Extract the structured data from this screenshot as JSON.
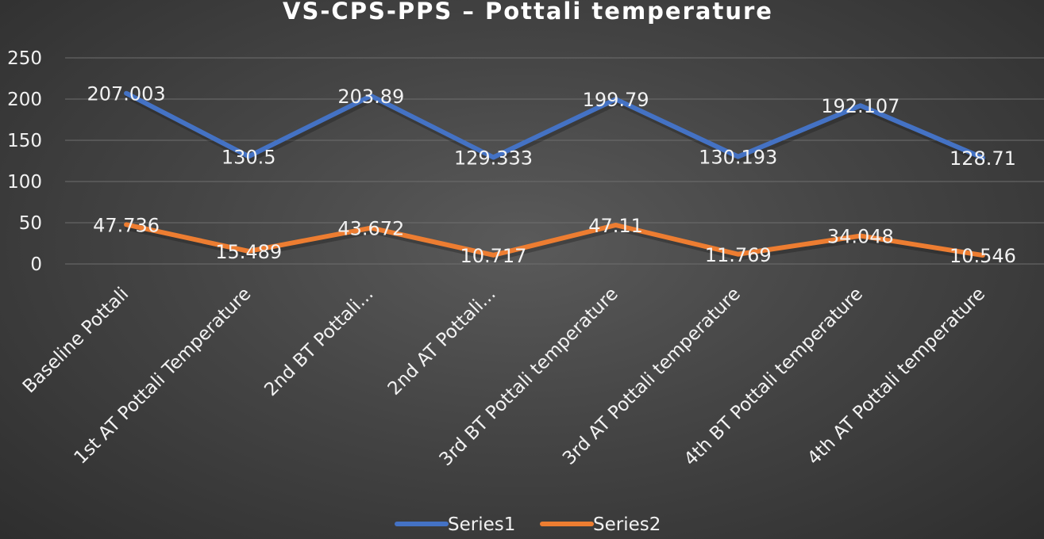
{
  "chart_data": {
    "type": "line",
    "title": "VS-CPS-PPS – Pottali temperature",
    "categories": [
      "Baseline Pottali",
      "1st AT Pottali Temperature",
      "2nd BT Pottali...",
      "2nd AT Pottali...",
      "3rd BT Pottali temperature",
      "3rd AT Pottali temperature",
      "4th BT Pottali temperature",
      "4th AT Pottali temperature"
    ],
    "series": [
      {
        "name": "Series1",
        "color": "#4472C4",
        "values": [
          207.003,
          130.5,
          203.89,
          129.333,
          199.79,
          130.193,
          192.107,
          128.71
        ],
        "labels": [
          "207.003",
          "130.5",
          "203.89",
          "129.333",
          "199.79",
          "130.193",
          "192.107",
          "128.71"
        ]
      },
      {
        "name": "Series2",
        "color": "#ED7D31",
        "values": [
          47.736,
          15.489,
          43.672,
          10.717,
          47.11,
          11.769,
          34.048,
          10.546
        ],
        "labels": [
          "47.736",
          "15.489",
          "43.672",
          "10.717",
          "47.11",
          "11.769",
          "34.048",
          "10.546"
        ]
      }
    ],
    "ylim": [
      0,
      250
    ],
    "yticks": [
      "0",
      "50",
      "100",
      "150",
      "200",
      "250"
    ],
    "grid": true,
    "legend": "bottom"
  }
}
